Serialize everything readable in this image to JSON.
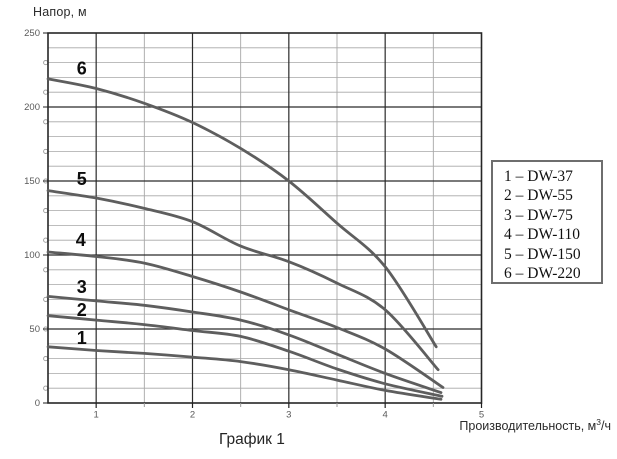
{
  "colors": {
    "background": "#ffffff",
    "curve": "#5e5e5e",
    "grid_major": "#2a2a2a",
    "grid_minor": "#a7a7a7",
    "border": "#262626",
    "tick_mark_major": "#1f1f1f",
    "tick_mark_minor": "#999999",
    "tick_label": "#595959",
    "curve_label": "#0d0d0d",
    "decor_circle": "#9a9a9a"
  },
  "labels": {
    "y_axis_title": "Напор, м",
    "x_axis_title_base": "Производительность, м",
    "x_axis_title_sup": "3",
    "x_axis_title_tail": "/ч",
    "caption": "График 1"
  },
  "legend": {
    "items": [
      "1 – DW-37",
      "2 – DW-55",
      "3 – DW-75",
      "4 – DW-110",
      "5 – DW-150",
      "6 – DW-220"
    ]
  },
  "chart_data": {
    "type": "line",
    "title": "График 1",
    "xlabel": "Производительность, м³/ч",
    "ylabel": "Напор, м",
    "xlim": [
      0.5,
      5
    ],
    "ylim": [
      0,
      250
    ],
    "x_major_ticks": [
      1,
      2,
      3,
      4,
      5
    ],
    "x_minor_ticks": [
      1.5,
      2.5,
      3.5,
      4.5
    ],
    "y_major_ticks": [
      0,
      50,
      100,
      150,
      200,
      250
    ],
    "y_minor_step": 10,
    "grid": "major+minor",
    "legend_position": "outside-right",
    "series": [
      {
        "label": "1",
        "name": "DW-37",
        "points": [
          [
            0.5,
            38
          ],
          [
            1,
            35.5
          ],
          [
            1.5,
            33.5
          ],
          [
            2,
            31
          ],
          [
            2.5,
            28
          ],
          [
            3,
            22.5
          ],
          [
            3.5,
            15.5
          ],
          [
            4,
            8.5
          ],
          [
            4.58,
            2.5
          ]
        ]
      },
      {
        "label": "2",
        "name": "DW-55",
        "points": [
          [
            0.5,
            59
          ],
          [
            1,
            56
          ],
          [
            1.5,
            53
          ],
          [
            2,
            49
          ],
          [
            2.5,
            45
          ],
          [
            3,
            35
          ],
          [
            3.5,
            23
          ],
          [
            4,
            13
          ],
          [
            4.59,
            4.5
          ]
        ]
      },
      {
        "label": "3",
        "name": "DW-75",
        "points": [
          [
            0.5,
            72
          ],
          [
            1,
            69
          ],
          [
            1.5,
            66
          ],
          [
            2,
            61.5
          ],
          [
            2.5,
            56
          ],
          [
            3,
            46
          ],
          [
            3.5,
            33
          ],
          [
            4,
            20
          ],
          [
            4.58,
            7
          ]
        ]
      },
      {
        "label": "4",
        "name": "DW-110",
        "points": [
          [
            0.5,
            102
          ],
          [
            1,
            99
          ],
          [
            1.5,
            94.5
          ],
          [
            2,
            85.5
          ],
          [
            2.5,
            75
          ],
          [
            3,
            63
          ],
          [
            3.5,
            51
          ],
          [
            4,
            36.5
          ],
          [
            4.6,
            10.5
          ]
        ]
      },
      {
        "label": "5",
        "name": "DW-150",
        "points": [
          [
            0.5,
            143.5
          ],
          [
            1,
            138.5
          ],
          [
            1.5,
            131.5
          ],
          [
            2,
            122.5
          ],
          [
            2.5,
            106
          ],
          [
            3,
            95.5
          ],
          [
            3.5,
            81
          ],
          [
            4,
            63
          ],
          [
            4.55,
            22.5
          ]
        ]
      },
      {
        "label": "6",
        "name": "DW-220",
        "points": [
          [
            0.5,
            219
          ],
          [
            1,
            212.5
          ],
          [
            1.5,
            202.5
          ],
          [
            2,
            189.5
          ],
          [
            2.5,
            172
          ],
          [
            3,
            150
          ],
          [
            3.5,
            121.5
          ],
          [
            4,
            92
          ],
          [
            4.53,
            38
          ]
        ]
      }
    ],
    "curve_labels": [
      {
        "text": "1",
        "x": 0.85,
        "y": 44
      },
      {
        "text": "2",
        "x": 0.85,
        "y": 63
      },
      {
        "text": "3",
        "x": 0.85,
        "y": 78.5
      },
      {
        "text": "4",
        "x": 0.84,
        "y": 110
      },
      {
        "text": "5",
        "x": 0.85,
        "y": 151.5
      },
      {
        "text": "6",
        "x": 0.85,
        "y": 226
      }
    ],
    "decor_circles": {
      "y_start": 10,
      "y_step": 20,
      "y_end": 230
    }
  }
}
